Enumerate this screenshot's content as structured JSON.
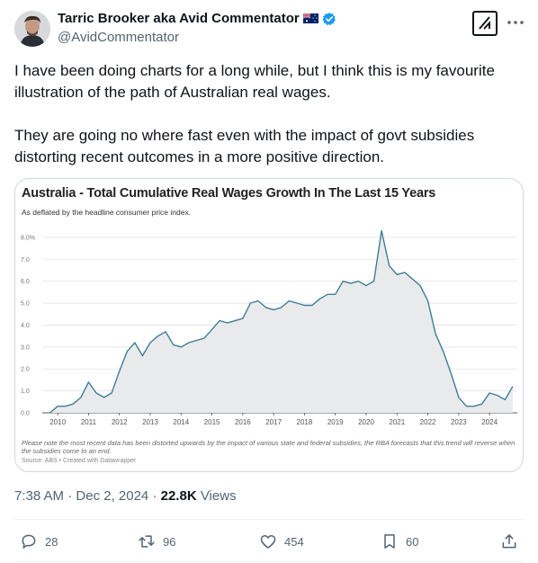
{
  "author": {
    "display_name": "Tarric Brooker aka Avid Commentator",
    "handle": "@AvidCommentator"
  },
  "tweet": {
    "paragraphs": [
      "I have been doing charts for a long while, but I think this is my favourite illustration of the path of Australian real wages.",
      "They are going no where fast even with the impact of govt subsidies distorting recent outcomes in a more positive direction."
    ]
  },
  "chart": {
    "title": "Australia - Total Cumulative Real Wages Growth In The Last 15 Years",
    "subtitle": "As deflated by the headline consumer price index.",
    "note": "Please note the most recent data has been distorted upwards by the impact of various state and federal subsidies, the RBA forecasts that this trend will reverse when the subsidies come to an end.",
    "source": "Source: ABS • Created with Datawrapper"
  },
  "chart_data": {
    "type": "area",
    "title": "Australia - Total Cumulative Real Wages Growth In The Last 15 Years",
    "subtitle": "As deflated by the headline consumer price index.",
    "xlabel": "",
    "ylabel": "",
    "x_ticks": [
      "2010",
      "2011",
      "2012",
      "2013",
      "2014",
      "2015",
      "2016",
      "2017",
      "2018",
      "2019",
      "2020",
      "2021",
      "2022",
      "2023",
      "2024"
    ],
    "y_ticks": [
      "0.0",
      "1.0",
      "2.0",
      "3.0",
      "4.0",
      "5.0",
      "6.0",
      "7.0",
      "8.0%"
    ],
    "xlim": [
      2009.5,
      2024.9
    ],
    "ylim": [
      0,
      8.2
    ],
    "grid": true,
    "color": "#3d7d98",
    "fill": "#e9eaeb",
    "x": [
      2009.75,
      2010.0,
      2010.25,
      2010.5,
      2010.75,
      2011.0,
      2011.25,
      2011.5,
      2011.75,
      2012.0,
      2012.25,
      2012.5,
      2012.75,
      2013.0,
      2013.25,
      2013.5,
      2013.75,
      2014.0,
      2014.25,
      2014.5,
      2014.75,
      2015.0,
      2015.25,
      2015.5,
      2015.75,
      2016.0,
      2016.25,
      2016.5,
      2016.75,
      2017.0,
      2017.25,
      2017.5,
      2017.75,
      2018.0,
      2018.25,
      2018.5,
      2018.75,
      2019.0,
      2019.25,
      2019.5,
      2019.75,
      2020.0,
      2020.25,
      2020.5,
      2020.75,
      2021.0,
      2021.25,
      2021.5,
      2021.75,
      2022.0,
      2022.25,
      2022.5,
      2022.75,
      2023.0,
      2023.25,
      2023.5,
      2023.75,
      2024.0,
      2024.25,
      2024.5,
      2024.75
    ],
    "values": [
      0.0,
      0.3,
      0.3,
      0.4,
      0.7,
      1.4,
      0.9,
      0.7,
      0.9,
      1.9,
      2.8,
      3.2,
      2.6,
      3.2,
      3.5,
      3.7,
      3.1,
      3.0,
      3.2,
      3.3,
      3.4,
      3.8,
      4.2,
      4.1,
      4.2,
      4.3,
      5.0,
      5.1,
      4.8,
      4.7,
      4.8,
      5.1,
      5.0,
      4.9,
      4.9,
      5.2,
      5.4,
      5.4,
      6.0,
      5.9,
      6.0,
      5.8,
      6.0,
      8.3,
      6.7,
      6.3,
      6.4,
      6.1,
      5.8,
      5.1,
      3.6,
      2.8,
      1.8,
      0.7,
      0.3,
      0.3,
      0.4,
      0.9,
      0.8,
      0.6,
      1.2
    ]
  },
  "meta": {
    "time": "7:38 AM",
    "separator": "·",
    "date": "Dec 2, 2024",
    "views_count": "22.8K",
    "views_label": "Views"
  },
  "actions": {
    "replies": "28",
    "reposts": "96",
    "likes": "454",
    "bookmarks": "60"
  },
  "colors": {
    "verified": "#1d9bf0",
    "muted_text": "#536471",
    "line": "#3d7d98"
  },
  "icons": [
    "grok-icon",
    "more-icon",
    "verified-badge-icon",
    "australia-flag-icon",
    "reply-icon",
    "repost-icon",
    "like-icon",
    "bookmark-icon",
    "share-icon"
  ]
}
